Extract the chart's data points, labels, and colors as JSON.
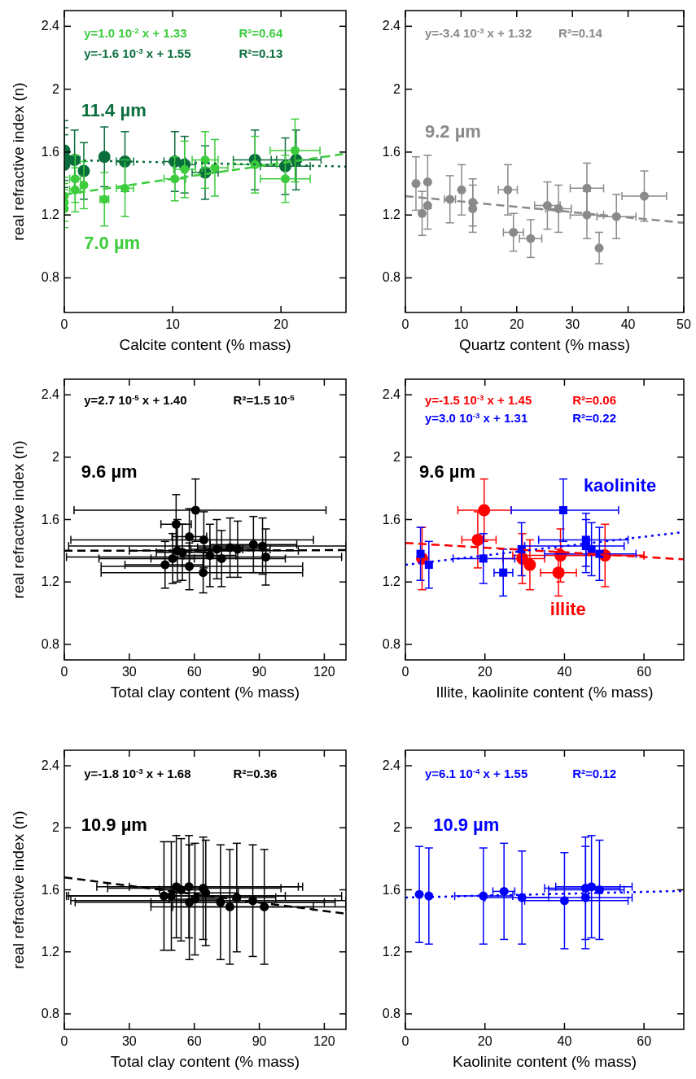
{
  "chart_data": [
    {
      "type": "scatter",
      "xlabel": "Calcite content (% mass)",
      "ylabel": "real refractive index (n)",
      "xlim": [
        0,
        26
      ],
      "xticks": [
        0,
        10,
        20
      ],
      "ylim": [
        0.58,
        2.5
      ],
      "yticks": [
        0.8,
        1.2,
        1.6,
        2,
        2.4
      ],
      "marker": "circle",
      "annotations": [
        "y=1.0 10$^{-2}$ x + 1.33",
        "R²=0.64",
        "y=-1.6 10$^{-3}$ x + 1.55",
        "R²=0.13"
      ],
      "series": [
        {
          "name": "11.4 µm",
          "color": "#0a6e3c",
          "x": [
            0,
            0,
            0,
            0.95,
            1.8,
            3.7,
            5.6,
            10.2,
            11.1,
            13,
            17.6,
            20.4,
            21.4
          ],
          "values": [
            1.61,
            1.565,
            1.52,
            1.55,
            1.48,
            1.57,
            1.54,
            1.54,
            1.52,
            1.47,
            1.55,
            1.51,
            1.55
          ],
          "errors": [
            0.19,
            0.19,
            0.19,
            0.19,
            0.18,
            0.19,
            0.19,
            0.19,
            0.18,
            0.17,
            0.19,
            0.18,
            0.19
          ],
          "xerrors": [
            null,
            null,
            null,
            0.5,
            null,
            null,
            0.8,
            1,
            1,
            1.2,
            2,
            2.3,
            2.3
          ]
        },
        {
          "name": "7.0 µm",
          "color": "#3ccc3c",
          "x": [
            0,
            0,
            0,
            1,
            1,
            1.8,
            3.7,
            5.6,
            10.2,
            11.1,
            13,
            13.9,
            17.6,
            20.4,
            21.3
          ],
          "values": [
            1.32,
            1.28,
            1.24,
            1.43,
            1.36,
            1.39,
            1.3,
            1.37,
            1.43,
            1.49,
            1.55,
            1.5,
            1.52,
            1.43,
            1.61
          ],
          "errors": [
            0.12,
            0.12,
            0.12,
            0.15,
            0.14,
            0.15,
            0.17,
            0.18,
            0.14,
            0.18,
            0.18,
            0.18,
            0.18,
            0.15,
            0.2
          ],
          "xerrors": [
            null,
            null,
            null,
            0.5,
            0.5,
            null,
            0.4,
            0.8,
            1,
            1,
            1.2,
            1.2,
            2,
            2.3,
            2.3
          ]
        },
        {
          "type": "line",
          "color": "#3ccc3c",
          "marker": "none",
          "line_style": "dashed",
          "x": [
            0,
            26
          ],
          "values": [
            1.33,
            1.59
          ]
        },
        {
          "type": "line",
          "color": "#0a6e3c",
          "marker": "none",
          "line_style": "dotted",
          "x": [
            0,
            26
          ],
          "values": [
            1.55,
            1.508
          ]
        }
      ]
    },
    {
      "type": "scatter",
      "xlabel": "Quartz content (% mass)",
      "xlim": [
        0,
        50
      ],
      "xticks": [
        0,
        10,
        20,
        30,
        40,
        50
      ],
      "ylim": [
        0.58,
        2.5
      ],
      "yticks": [
        0.8,
        1.2,
        1.6,
        2,
        2.4
      ],
      "marker": "circle",
      "annotations": [
        "y=-3.4 10$^{-3}$ x + 1.32",
        "R²=0.14"
      ],
      "series": [
        {
          "name": "9.2 µm",
          "color": "#8a8a8a",
          "x": [
            1.9,
            3,
            4,
            4,
            8,
            10.1,
            12.1,
            12.1,
            18.4,
            19.4,
            22.5,
            25.5,
            27.5,
            32.6,
            32.6,
            34.8,
            37.9,
            42.9
          ],
          "values": [
            1.4,
            1.21,
            1.41,
            1.26,
            1.3,
            1.36,
            1.28,
            1.24,
            1.36,
            1.09,
            1.05,
            1.26,
            1.24,
            1.37,
            1.2,
            0.99,
            1.19,
            1.32
          ],
          "errors": [
            0.17,
            0.14,
            0.17,
            0.15,
            0.15,
            0.16,
            0.15,
            0.15,
            0.16,
            0.12,
            0.12,
            0.15,
            0.15,
            0.16,
            0.15,
            0.1,
            0.14,
            0.16
          ],
          "xerrors": [
            null,
            null,
            null,
            null,
            1,
            null,
            null,
            null,
            1.7,
            1.8,
            2,
            2.3,
            2.3,
            3,
            3,
            null,
            3.5,
            4
          ]
        },
        {
          "type": "line",
          "color": "#8a8a8a",
          "marker": "none",
          "line_style": "dashed",
          "x": [
            0,
            50
          ],
          "values": [
            1.32,
            1.15
          ]
        }
      ]
    },
    {
      "type": "scatter",
      "xlabel": "Total clay content (% mass)",
      "ylabel": "real refractive index (n)",
      "xlim": [
        0,
        130
      ],
      "xticks": [
        0,
        30,
        60,
        90,
        120
      ],
      "ylim": [
        0.7,
        2.5
      ],
      "yticks": [
        0.8,
        1.2,
        1.6,
        2,
        2.4
      ],
      "marker": "circle",
      "annotations": [
        "y=2.7 10$^{-5}$ x + 1.40",
        "R²=1.5 10$^{-5}$"
      ],
      "series": [
        {
          "name": "9.6 µm",
          "color": "#000000",
          "x": [
            51.6,
            60.6,
            57.7,
            64.4,
            46.5,
            50,
            52.2,
            54.5,
            57.7,
            64.1,
            67.2,
            70.4,
            72.6,
            76.5,
            80,
            87.3,
            91.5,
            93
          ],
          "values": [
            1.57,
            1.66,
            1.49,
            1.47,
            1.31,
            1.35,
            1.4,
            1.39,
            1.3,
            1.26,
            1.37,
            1.41,
            1.35,
            1.42,
            1.41,
            1.44,
            1.43,
            1.36
          ],
          "errors": [
            0.19,
            0.2,
            0.18,
            0.18,
            0.15,
            0.16,
            0.2,
            0.18,
            0.15,
            0.13,
            0.2,
            0.19,
            0.18,
            0.19,
            0.18,
            0.18,
            0.18,
            0.18
          ],
          "xerrors": [
            7,
            [
              4.5,
              120.8
            ],
            8,
            [
              3,
              115
            ],
            [
              28,
              64
            ],
            10,
            [
              30,
              108
            ],
            12,
            [
              17,
              110
            ],
            [
              17,
              110
            ],
            12,
            12,
            [
              16,
              102
            ],
            15,
            15,
            20,
            [
              2,
              130
            ],
            [
              1,
              128
            ]
          ]
        },
        {
          "type": "line",
          "color": "#000000",
          "marker": "none",
          "line_style": "dashed",
          "x": [
            0,
            130
          ],
          "values": [
            1.4,
            1.404
          ]
        }
      ]
    },
    {
      "type": "scatter",
      "xlabel": "Illite, kaolinite content (% mass)",
      "xlim": [
        0,
        70
      ],
      "xticks": [
        0,
        20,
        40,
        60
      ],
      "ylim": [
        0.7,
        2.5
      ],
      "yticks": [
        0.8,
        1.2,
        1.6,
        2,
        2.4
      ],
      "annotations": [
        "y=-1.5 10$^{-3}$ x + 1.45",
        "R²=0.06",
        "y=3.0 10$^{-3}$ x + 1.31",
        "R²=0.22",
        "9.6 µm"
      ],
      "series": [
        {
          "name": "illite",
          "color": "#ff0000",
          "marker": "circle",
          "x": [
            19.8,
            18.2,
            4.2,
            29.4,
            31.3,
            38.5,
            39,
            50.2
          ],
          "values": [
            1.66,
            1.47,
            1.35,
            1.35,
            1.31,
            1.26,
            1.37,
            1.37
          ],
          "errors": [
            0.2,
            0.18,
            0.2,
            0.16,
            0.16,
            0.15,
            0.17,
            0.2
          ],
          "xerrors": [
            [
              13.2,
              26.6
            ],
            [
              14.2,
              22.8
            ],
            null,
            [
              24.5,
              35
            ],
            null,
            [
              34,
              43
            ],
            [
              27,
              60
            ],
            [
              40,
              60
            ]
          ]
        },
        {
          "name": "kaolinite",
          "color": "#0000ff",
          "marker": "square",
          "x": [
            39.7,
            45.4,
            3.8,
            5.9,
            19.6,
            24.6,
            29.2,
            45.4,
            48.8,
            46.8
          ],
          "values": [
            1.66,
            1.47,
            1.38,
            1.31,
            1.35,
            1.26,
            1.41,
            1.43,
            1.38,
            1.41
          ],
          "errors": [
            0.2,
            0.17,
            0.17,
            0.15,
            0.16,
            0.15,
            0.17,
            0.17,
            0.17,
            0.17
          ],
          "xerrors": [
            [
              26.6,
              53.6
            ],
            [
              33.5,
              56
            ],
            null,
            null,
            [
              12,
              27.5
            ],
            [
              22.3,
              27
            ],
            null,
            [
              30,
              55
            ],
            [
              35,
              58
            ],
            null
          ]
        },
        {
          "type": "line",
          "color": "#ff0000",
          "marker": "none",
          "line_style": "dashed",
          "x": [
            0,
            70
          ],
          "values": [
            1.45,
            1.345
          ]
        },
        {
          "type": "line",
          "color": "#0000ff",
          "marker": "none",
          "line_style": "dotted",
          "x": [
            0,
            70
          ],
          "values": [
            1.31,
            1.52
          ]
        }
      ]
    },
    {
      "type": "scatter",
      "xlabel": "Total clay content (% mass)",
      "ylabel": "real refractive index (n)",
      "xlim": [
        0,
        130
      ],
      "xticks": [
        0,
        30,
        60,
        90,
        120
      ],
      "ylim": [
        0.7,
        2.5
      ],
      "yticks": [
        0.8,
        1.2,
        1.6,
        2,
        2.4
      ],
      "marker": "circle",
      "annotations": [
        "y=-1.8 10$^{-3}$ x + 1.68",
        "R²=0.36"
      ],
      "series": [
        {
          "name": "10.9 µm",
          "color": "#000000",
          "x": [
            46,
            49.4,
            51.7,
            53.9,
            57.5,
            57.7,
            60.3,
            64.1,
            65.3,
            72.1,
            76.4,
            79.6,
            87,
            92.3
          ],
          "values": [
            1.56,
            1.56,
            1.62,
            1.6,
            1.62,
            1.52,
            1.54,
            1.61,
            1.58,
            1.52,
            1.49,
            1.55,
            1.53,
            1.49
          ],
          "errors": [
            0.35,
            0.35,
            0.33,
            0.33,
            0.33,
            0.37,
            0.36,
            0.33,
            0.34,
            0.37,
            0.37,
            0.35,
            0.36,
            0.37
          ],
          "xerrors": [
            [
              1,
              128
            ],
            [
              2,
              102
            ],
            [
              15,
              108
            ],
            10,
            [
              30,
              110
            ],
            [
              5,
              125
            ],
            12,
            [
              20,
              100
            ],
            15,
            [
              40,
              120
            ],
            [
              50,
              130
            ],
            18,
            [
              3,
              130
            ],
            [
              40,
              115
            ]
          ]
        },
        {
          "type": "line",
          "color": "#000000",
          "marker": "none",
          "line_style": "dashed",
          "x": [
            0,
            130
          ],
          "values": [
            1.68,
            1.446
          ]
        }
      ]
    },
    {
      "type": "scatter",
      "xlabel": "Kaolinite content (% mass)",
      "xlim": [
        0,
        70
      ],
      "xticks": [
        0,
        20,
        40,
        60
      ],
      "ylim": [
        0.7,
        2.5
      ],
      "yticks": [
        0.8,
        1.2,
        1.6,
        2,
        2.4
      ],
      "marker": "circle",
      "annotations": [
        "y=6.1 10$^{-4}$ x + 1.55",
        "R²=0.12"
      ],
      "series": [
        {
          "name": "10.9 µm",
          "color": "#0000ff",
          "x": [
            3.5,
            5.9,
            19.6,
            24.8,
            29.3,
            40,
            45.3,
            45.3,
            46.8,
            48.8
          ],
          "values": [
            1.57,
            1.56,
            1.56,
            1.59,
            1.55,
            1.53,
            1.61,
            1.55,
            1.62,
            1.6
          ],
          "errors": [
            0.31,
            0.31,
            0.31,
            0.31,
            0.3,
            0.31,
            0.33,
            0.33,
            0.33,
            0.32
          ],
          "xerrors": [
            null,
            null,
            [
              12.4,
              27
            ],
            [
              22,
              27.5
            ],
            [
              20,
              36
            ],
            [
              30,
              56
            ],
            [
              35,
              54
            ],
            [
              30,
              57
            ],
            [
              37.8,
              57
            ],
            [
              36,
              55
            ]
          ]
        },
        {
          "type": "line",
          "color": "#0000ff",
          "marker": "none",
          "line_style": "dotted",
          "x": [
            0,
            70
          ],
          "values": [
            1.55,
            1.593
          ]
        }
      ]
    }
  ]
}
